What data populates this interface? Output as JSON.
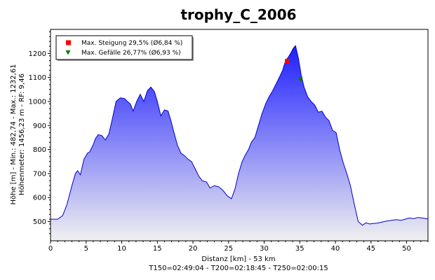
{
  "chart_data": {
    "type": "area",
    "title": "trophy_C_2006",
    "xlabel": "Distanz [km] - 53 km",
    "footer": "T150=02:49:04 - T200=02:18:45 - T250=02:00:15",
    "ylabel_lines": [
      "Höhe [m] - Min.: 482,74 - Max.: 1232,61",
      "Höhenmeter: 1456,23 m - RF: 9,46"
    ],
    "xlim": [
      0,
      53
    ],
    "ylim": [
      420,
      1300
    ],
    "xticks": [
      0,
      5,
      10,
      15,
      20,
      25,
      30,
      35,
      40,
      45,
      50
    ],
    "yticks": [
      500,
      600,
      700,
      800,
      900,
      1000,
      1100,
      1200
    ],
    "grid": false,
    "legend_position": "top-left",
    "legend": [
      {
        "label": "Max. Steigung 29,5% (Ø6,84 %)",
        "marker": "square",
        "color": "#ff0000"
      },
      {
        "label": "Max. Gefälle 26,77% (Ø6,93 %)",
        "marker": "triangle-down",
        "color": "#008000"
      }
    ],
    "markers": [
      {
        "name": "max-steigung",
        "x": 33.2,
        "y": 1168,
        "marker": "square",
        "color": "#ff0000"
      },
      {
        "name": "max-gefaelle",
        "x": 35.1,
        "y": 1092,
        "marker": "triangle-down",
        "color": "#008000"
      }
    ],
    "fill_top_color": "#1f1fff",
    "fill_bottom_color": "#f0f0f0",
    "line_color": "#0000cc",
    "series": [
      {
        "x": [
          0,
          1,
          1.7,
          2.3,
          3,
          3.5,
          3.8,
          4.2,
          4.7,
          5.2,
          5.5,
          6,
          6.3,
          6.7,
          7.2,
          7.7,
          8.2,
          8.7,
          9.2,
          9.8,
          10.4,
          10.8,
          11.2,
          11.6,
          12.1,
          12.6,
          13.1,
          13.6,
          14.1,
          14.6,
          15,
          15.5,
          16,
          16.5,
          16.9,
          17.3,
          17.8,
          18.3,
          18.8,
          19.3,
          19.8,
          20.3,
          20.8,
          21.3,
          21.9,
          22.4,
          23,
          23.6,
          24.2,
          24.8,
          25.4,
          25.9,
          26.4,
          26.9,
          27.4,
          27.8,
          28.2,
          28.7,
          29.2,
          29.7,
          30.2,
          30.7,
          31.2,
          31.7,
          32.2,
          32.6,
          33,
          33.4,
          33.8,
          34.1,
          34.4,
          34.8,
          35.2,
          35.6,
          36.1,
          36.6,
          37.1,
          37.6,
          38.1,
          38.6,
          39.1,
          39.6,
          40.1,
          40.6,
          41.1,
          41.6,
          42.1,
          42.6,
          43.2,
          43.8,
          44.3,
          44.8,
          45.3,
          45.8,
          46.3,
          46.8,
          47.4,
          48,
          48.6,
          49.2,
          49.8,
          50.4,
          51,
          51.6,
          52.2,
          52.7,
          53
        ],
        "y": [
          510,
          510,
          525,
          570,
          650,
          700,
          712,
          695,
          760,
          785,
          790,
          820,
          845,
          862,
          858,
          840,
          865,
          930,
          1000,
          1015,
          1012,
          1000,
          990,
          960,
          1000,
          1030,
          1000,
          1045,
          1060,
          1040,
          1000,
          940,
          965,
          960,
          920,
          875,
          820,
          785,
          775,
          760,
          750,
          720,
          690,
          670,
          665,
          640,
          650,
          645,
          630,
          608,
          595,
          635,
          700,
          750,
          780,
          800,
          830,
          850,
          900,
          950,
          990,
          1020,
          1045,
          1075,
          1105,
          1130,
          1170,
          1185,
          1205,
          1222,
          1232,
          1180,
          1110,
          1060,
          1020,
          1000,
          985,
          955,
          960,
          935,
          920,
          880,
          870,
          800,
          745,
          700,
          650,
          580,
          500,
          485,
          495,
          490,
          492,
          493,
          496,
          500,
          503,
          506,
          508,
          505,
          510,
          515,
          512,
          517,
          515,
          512,
          512
        ]
      }
    ]
  }
}
